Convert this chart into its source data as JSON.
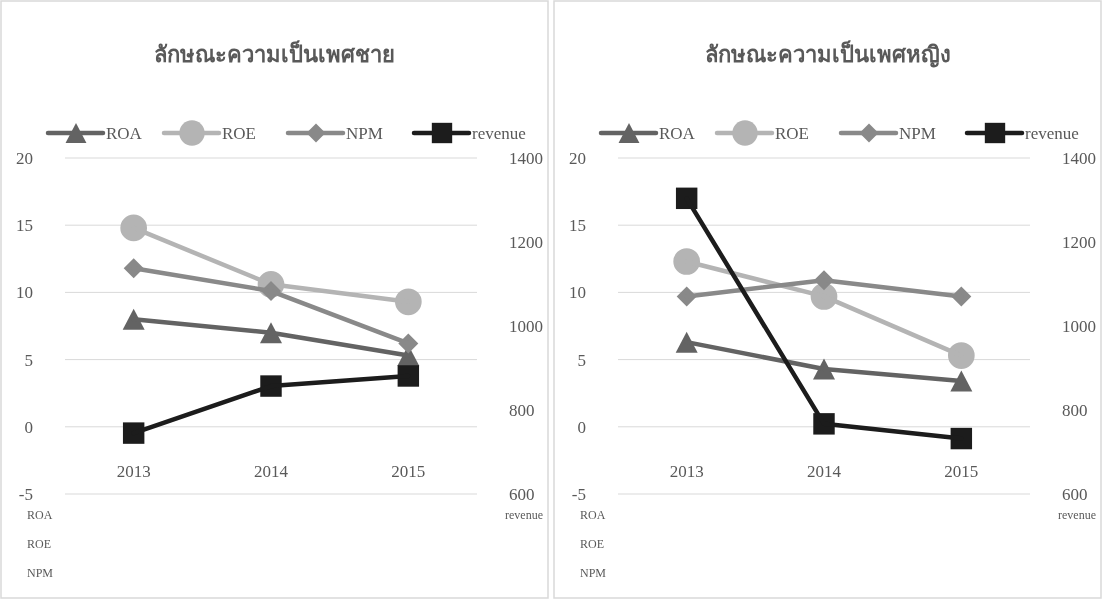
{
  "chart_data": [
    {
      "type": "line",
      "title": "ลักษณะความเป็นเพศชาย",
      "ylabel": "ROA ROE NPM",
      "y2label": "revenue",
      "categories": [
        "2013",
        "2014",
        "2015"
      ],
      "series": [
        {
          "name": "ROA",
          "color": "#636363",
          "marker": "triangle",
          "values": [
            8.0,
            7.0,
            5.3
          ]
        },
        {
          "name": "ROE",
          "color": "#b4b4b4",
          "marker": "circle",
          "values": [
            14.8,
            10.6,
            9.3
          ]
        },
        {
          "name": "NPM",
          "color": "#898989",
          "marker": "diamond",
          "values": [
            11.8,
            10.1,
            6.2
          ]
        },
        {
          "name": "revenue",
          "color": "#1c1c1c",
          "marker": "square",
          "axis": "y2",
          "values": [
            745,
            857,
            881
          ]
        }
      ],
      "ylim": [
        -5,
        20
      ],
      "yticks": [
        -5,
        0,
        5,
        10,
        15,
        20
      ],
      "y2lim": [
        600,
        1400
      ],
      "y2ticks": [
        600,
        800,
        1000,
        1200,
        1400
      ],
      "grid": "y",
      "legend": "top"
    },
    {
      "type": "line",
      "title": "ลักษณะความเป็นเพศหญิง",
      "ylabel": "ROA ROE NPM",
      "y2label": "revenue",
      "categories": [
        "2013",
        "2014",
        "2015"
      ],
      "series": [
        {
          "name": "ROA",
          "color": "#636363",
          "marker": "triangle",
          "values": [
            6.3,
            4.3,
            3.4
          ]
        },
        {
          "name": "ROE",
          "color": "#b4b4b4",
          "marker": "circle",
          "values": [
            12.3,
            9.7,
            5.3
          ]
        },
        {
          "name": "NPM",
          "color": "#898989",
          "marker": "diamond",
          "values": [
            9.7,
            10.9,
            9.7
          ]
        },
        {
          "name": "revenue",
          "color": "#1c1c1c",
          "marker": "square",
          "axis": "y2",
          "values": [
            1304,
            767,
            732
          ]
        }
      ],
      "ylim": [
        -5,
        20
      ],
      "yticks": [
        -5,
        0,
        5,
        10,
        15,
        20
      ],
      "y2lim": [
        600,
        1400
      ],
      "y2ticks": [
        600,
        800,
        1000,
        1200,
        1400
      ],
      "grid": "y",
      "legend": "top"
    }
  ]
}
